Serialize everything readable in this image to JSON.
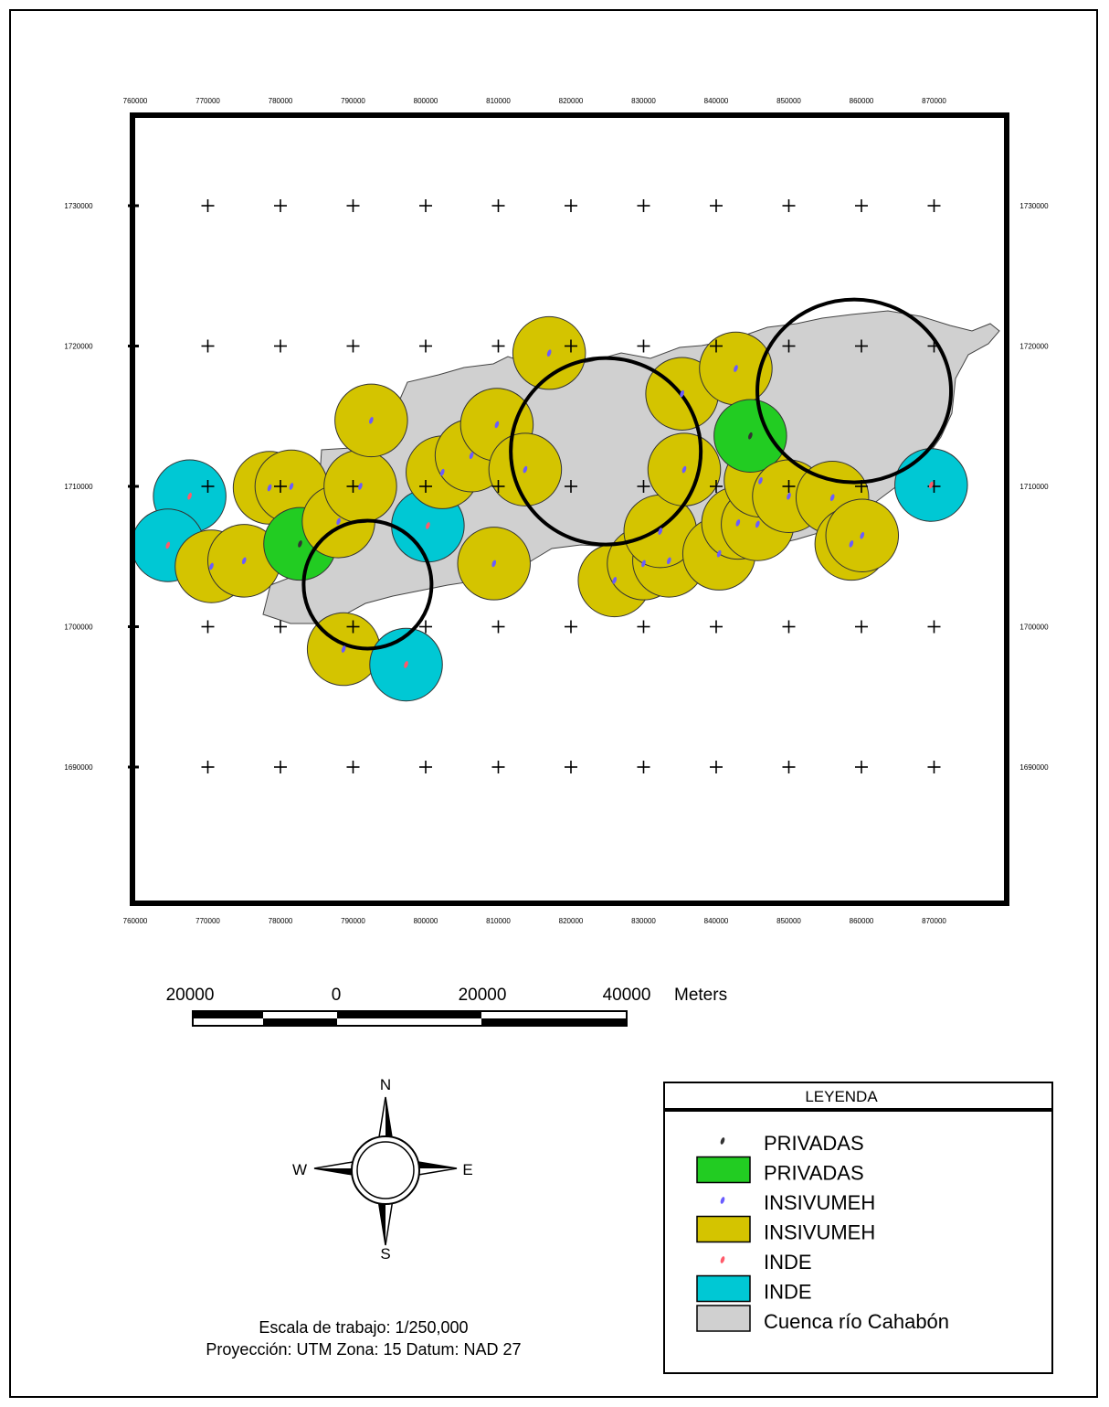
{
  "map": {
    "x_ticks": [
      "760000",
      "770000",
      "780000",
      "790000",
      "800000",
      "810000",
      "820000",
      "830000",
      "840000",
      "850000",
      "860000",
      "870000"
    ],
    "y_ticks": [
      "1730000",
      "1720000",
      "1710000",
      "1700000",
      "1690000"
    ],
    "colors": {
      "basin": "#d0d0d0",
      "privadas": "#22cc22",
      "insivumeh": "#d4c400",
      "inde": "#00c8d4",
      "privadas_point": "#333333",
      "insivumeh_point": "#6a5cff",
      "inde_point": "#ff5a6a"
    },
    "stations": [
      {
        "type": "inde",
        "x": 767500,
        "y": 1709300
      },
      {
        "type": "inde",
        "x": 764500,
        "y": 1705800
      },
      {
        "type": "insivumeh",
        "x": 770500,
        "y": 1704300
      },
      {
        "type": "insivumeh",
        "x": 775000,
        "y": 1704700
      },
      {
        "type": "insivumeh",
        "x": 778500,
        "y": 1709900
      },
      {
        "type": "insivumeh",
        "x": 781500,
        "y": 1710000
      },
      {
        "type": "privadas",
        "x": 782700,
        "y": 1705900
      },
      {
        "type": "insivumeh",
        "x": 788000,
        "y": 1707500
      },
      {
        "type": "insivumeh",
        "x": 791000,
        "y": 1710000
      },
      {
        "type": "insivumeh",
        "x": 792500,
        "y": 1714700
      },
      {
        "type": "inde",
        "x": 800300,
        "y": 1707200
      },
      {
        "type": "insivumeh",
        "x": 802300,
        "y": 1711000
      },
      {
        "type": "insivumeh",
        "x": 806300,
        "y": 1712200
      },
      {
        "type": "insivumeh",
        "x": 809800,
        "y": 1714400
      },
      {
        "type": "insivumeh",
        "x": 813700,
        "y": 1711200
      },
      {
        "type": "insivumeh",
        "x": 809400,
        "y": 1704500
      },
      {
        "type": "insivumeh",
        "x": 817000,
        "y": 1719500
      },
      {
        "type": "insivumeh",
        "x": 788700,
        "y": 1698400
      },
      {
        "type": "inde",
        "x": 797300,
        "y": 1697300
      },
      {
        "type": "insivumeh",
        "x": 826000,
        "y": 1703300
      },
      {
        "type": "insivumeh",
        "x": 830000,
        "y": 1704500
      },
      {
        "type": "insivumeh",
        "x": 833500,
        "y": 1704700
      },
      {
        "type": "insivumeh",
        "x": 832300,
        "y": 1706800
      },
      {
        "type": "insivumeh",
        "x": 835300,
        "y": 1716600
      },
      {
        "type": "insivumeh",
        "x": 835600,
        "y": 1711200
      },
      {
        "type": "insivumeh",
        "x": 840400,
        "y": 1705200
      },
      {
        "type": "insivumeh",
        "x": 842700,
        "y": 1718400
      },
      {
        "type": "insivumeh",
        "x": 843000,
        "y": 1707400
      },
      {
        "type": "insivumeh",
        "x": 845700,
        "y": 1707300
      },
      {
        "type": "insivumeh",
        "x": 846100,
        "y": 1710400
      },
      {
        "type": "privadas",
        "x": 844700,
        "y": 1713600
      },
      {
        "type": "insivumeh",
        "x": 850000,
        "y": 1709300
      },
      {
        "type": "insivumeh",
        "x": 856000,
        "y": 1709200
      },
      {
        "type": "insivumeh",
        "x": 858600,
        "y": 1705900
      },
      {
        "type": "insivumeh",
        "x": 860100,
        "y": 1706500
      },
      {
        "type": "inde",
        "x": 869600,
        "y": 1710100
      }
    ],
    "selection_circles": [
      {
        "x": 792000,
        "y": 1703000
      },
      {
        "x": 824800,
        "y": 1712500
      },
      {
        "x": 859000,
        "y": 1716800
      }
    ]
  },
  "scalebar": {
    "labels": [
      "20000",
      "0",
      "20000",
      "40000"
    ],
    "units": "Meters"
  },
  "compass": {
    "n": "N",
    "s": "S",
    "e": "E",
    "w": "W"
  },
  "legend": {
    "title": "LEYENDA",
    "items": [
      {
        "label": "PRIVADAS",
        "kind": "point",
        "color": "#333333"
      },
      {
        "label": "PRIVADAS",
        "kind": "box",
        "color": "#22cc22"
      },
      {
        "label": "INSIVUMEH",
        "kind": "point",
        "color": "#6a5cff"
      },
      {
        "label": "INSIVUMEH",
        "kind": "box",
        "color": "#d4c400"
      },
      {
        "label": "INDE",
        "kind": "point",
        "color": "#ff5a6a"
      },
      {
        "label": "INDE",
        "kind": "box",
        "color": "#00c8d4"
      },
      {
        "label": "Cuenca río Cahabón",
        "kind": "box",
        "color": "#d0d0d0"
      }
    ]
  },
  "info": {
    "scale": "Escala de trabajo: 1/250,000",
    "projection": "Proyección: UTM  Zona: 15 Datum: NAD 27"
  }
}
